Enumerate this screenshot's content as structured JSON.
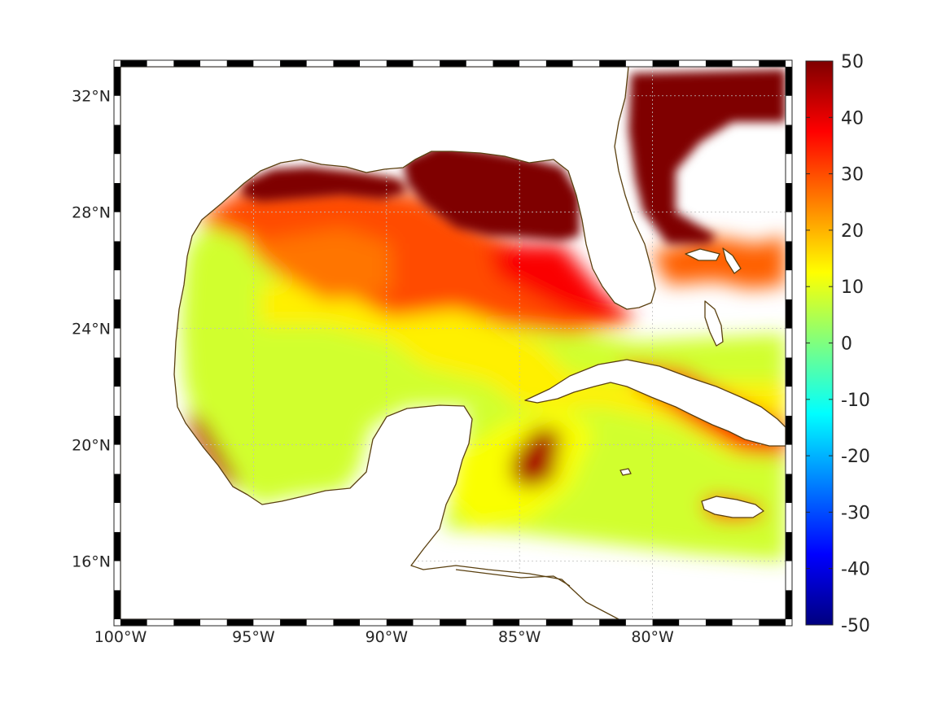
{
  "map": {
    "type": "gridded-field-map",
    "extent": {
      "lon_min": -100,
      "lon_max": -75,
      "lat_min": 14,
      "lat_max": 33
    },
    "lon_ticks": [
      {
        "lon": -100,
        "label": "100°W"
      },
      {
        "lon": -95,
        "label": "95°W"
      },
      {
        "lon": -90,
        "label": "90°W"
      },
      {
        "lon": -85,
        "label": "85°W"
      },
      {
        "lon": -80,
        "label": "80°W"
      }
    ],
    "lat_ticks": [
      {
        "lat": 32,
        "label": "32°N"
      },
      {
        "lat": 28,
        "label": "28°N"
      },
      {
        "lat": 24,
        "label": "24°N"
      },
      {
        "lat": 20,
        "label": "20°N"
      },
      {
        "lat": 16,
        "label": "16°N"
      }
    ],
    "grid": true,
    "coastline_color": "#5a4010",
    "frame_colors": [
      "#000000",
      "#ffffff"
    ]
  },
  "colorbar": {
    "min": -50,
    "max": 50,
    "colormap": "jet",
    "tick_labels": [
      "50",
      "40",
      "30",
      "20",
      "10",
      "0",
      "-10",
      "-20",
      "-30",
      "-40",
      "-50"
    ]
  },
  "field": {
    "color_ramp": [
      "#00007f",
      "#0000ff",
      "#007fff",
      "#00ffff",
      "#7fff7f",
      "#ffff00",
      "#ff7f00",
      "#ff0000",
      "#7f0000"
    ],
    "regions": [
      {
        "name": "nw-gulf-coast-band",
        "value": 50
      },
      {
        "name": "mississippi-delta-to-florida-bend",
        "value": 50
      },
      {
        "name": "atlantic-off-georgia-carolina",
        "value": 50
      },
      {
        "name": "north-gulf-shelf",
        "value": 30
      },
      {
        "name": "central-north-gulf",
        "value": 26
      },
      {
        "name": "west-florida-shelf",
        "value": 38
      },
      {
        "name": "western-gulf",
        "value": 8
      },
      {
        "name": "central-gulf",
        "value": 14
      },
      {
        "name": "bay-of-campeche-shore",
        "value": 44
      },
      {
        "name": "yucatan-channel-eddy",
        "value": 46
      },
      {
        "name": "cuba-south-coast",
        "value": 38
      },
      {
        "name": "jamaica",
        "value": 36
      },
      {
        "name": "western-caribbean",
        "value": 12
      },
      {
        "name": "bahamas-banks",
        "value": 28
      }
    ]
  }
}
